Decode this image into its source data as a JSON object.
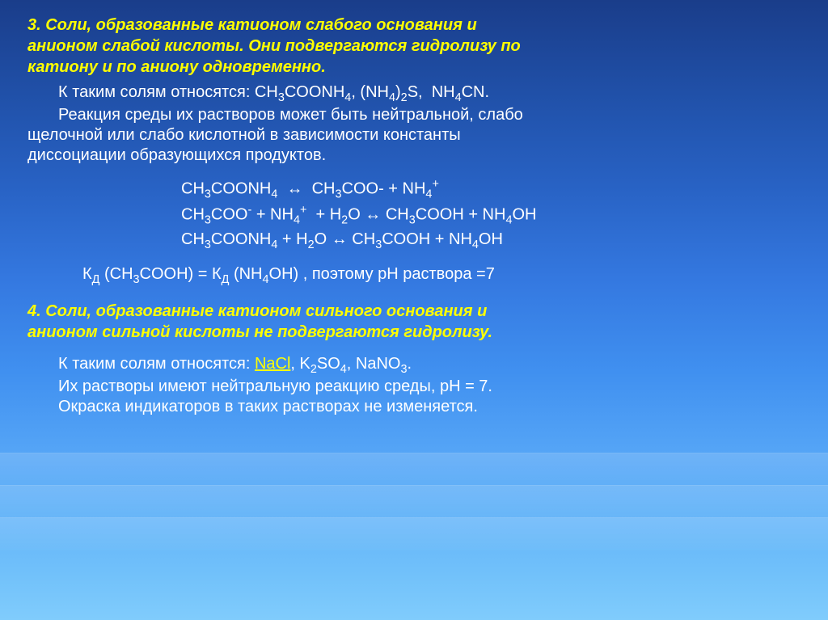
{
  "colors": {
    "heading_color": "#ffff00",
    "body_color": "#ffffff",
    "highlight_color": "#ffff00",
    "background_gradient_top": "#1a3d8a",
    "background_gradient_bottom": "#80ccfc"
  },
  "typography": {
    "font_family": "Arial, sans-serif",
    "heading_fontsize_pt": 15,
    "body_fontsize_pt": 15,
    "heading_weight": "bold",
    "heading_style": "italic"
  },
  "section3": {
    "heading_l1": "3. Соли, образованные катионом слабого основания и",
    "heading_l2": "анионом слабой кислоты. Они подвергаются гидролизу по",
    "heading_l3": "катиону и по аниону одновременно.",
    "p1": "К таким солям относятся: CH₃COONH₄, (NH₄)₂S,  NH₄CN.",
    "p2": "Реакция среды их растворов может быть нейтральной, слабо",
    "p3": "щелочной или слабо кислотной в зависимости константы",
    "p4": "диссоциации образующихся продуктов.",
    "formulas": {
      "f1": "CH₃COONH₄  ↔  CH₃COO- + NH₄⁺",
      "f2": "CH₃COO⁻ + NH₄⁺  + H₂O ↔ CH₃COOH + NH₄OH",
      "f3": "CH₃COONH₄ + H₂O ↔ CH₃COOH + NH₄OH"
    },
    "kd_line": "Кд (CH₃COOH) = Кд (NH₄OH) , поэтому рН раствора =7"
  },
  "section4": {
    "heading_l1": "4. Соли, образованные катионом сильного основания и",
    "heading_l2": "анионом сильной кислоты не подвергаются гидролизу.",
    "p1_before_nacl": "К таким солям относятся: ",
    "nacl": "NaCl",
    "p1_after_nacl": ", K₂SO₄, NaNO₃.",
    "p2": "Их  растворы имеют нейтральную реакцию среды, рН = 7.",
    "p3": "Окраска индикаторов в таких растворах не изменяется."
  }
}
